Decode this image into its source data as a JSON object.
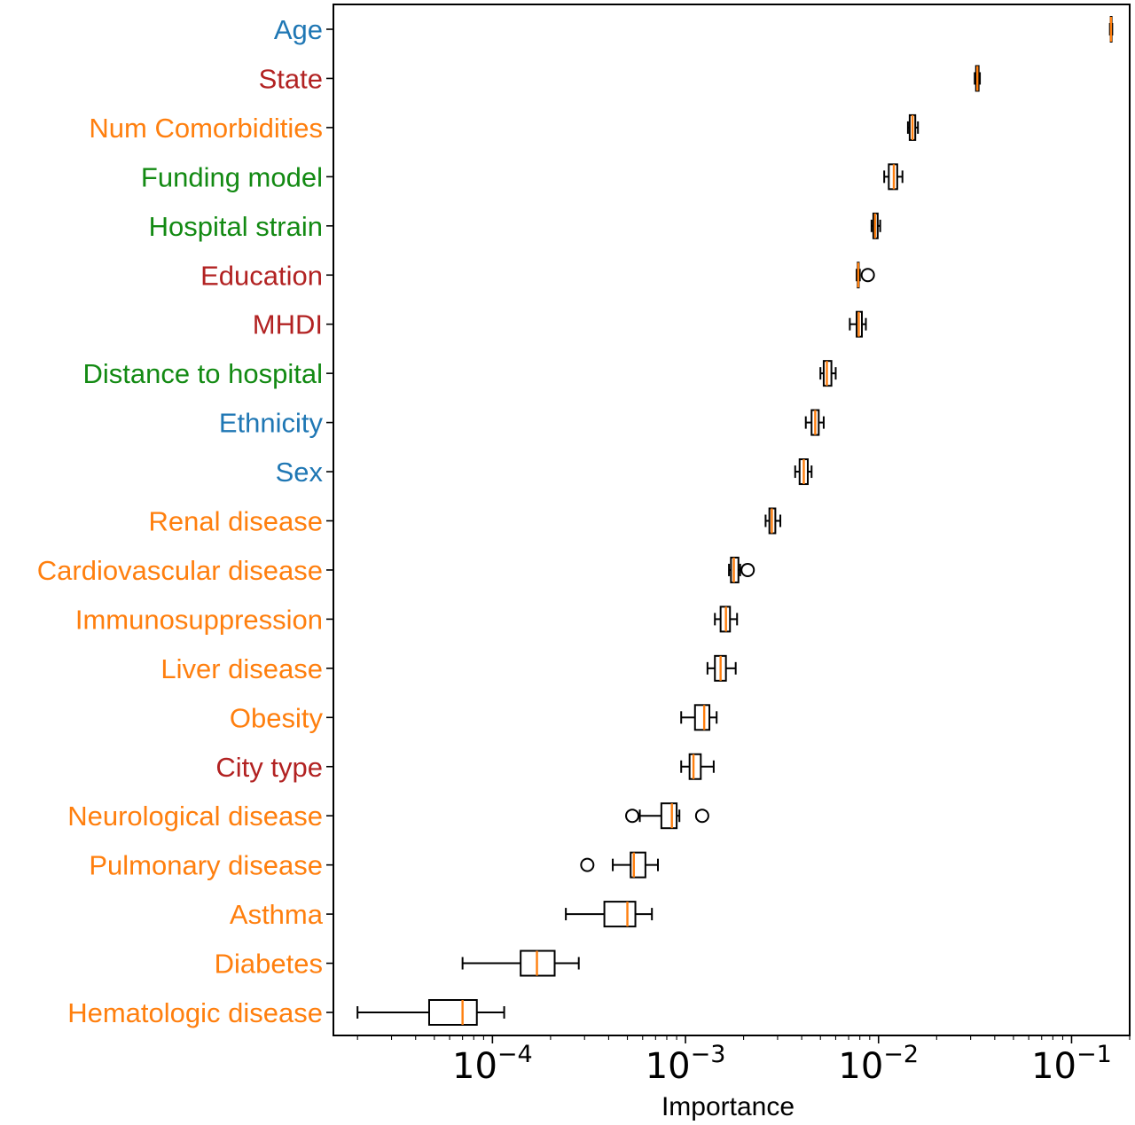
{
  "chart_data": {
    "type": "boxplot",
    "orientation": "horizontal",
    "xlabel": "Importance",
    "xscale": "log",
    "xlim": [
      1.5e-05,
      0.2
    ],
    "xticks": [
      {
        "value": 0.0001,
        "base": "10",
        "exp": "−4"
      },
      {
        "value": 0.001,
        "base": "10",
        "exp": "−3"
      },
      {
        "value": 0.01,
        "base": "10",
        "exp": "−2"
      },
      {
        "value": 0.1,
        "base": "10",
        "exp": "−1"
      }
    ],
    "grid": false,
    "colors": {
      "demographic": "#1f77b4",
      "socioeconomic": "#b22222",
      "comorbidity": "#ff7f0e",
      "healthcare": "#138a13",
      "median": "#ff7f0e",
      "box": "#000000"
    },
    "features": [
      {
        "label": "Age",
        "group": "demographic",
        "whislo": 0.158,
        "q1": 0.1595,
        "med": 0.16,
        "q3": 0.161,
        "whishi": 0.1625,
        "fliers": []
      },
      {
        "label": "State",
        "group": "socioeconomic",
        "whislo": 0.0315,
        "q1": 0.032,
        "med": 0.0325,
        "q3": 0.033,
        "whishi": 0.0335,
        "fliers": []
      },
      {
        "label": "Num Comorbidities",
        "group": "comorbidity",
        "whislo": 0.0142,
        "q1": 0.0145,
        "med": 0.015,
        "q3": 0.0155,
        "whishi": 0.016,
        "fliers": []
      },
      {
        "label": "Funding model",
        "group": "healthcare",
        "whislo": 0.0107,
        "q1": 0.0113,
        "med": 0.012,
        "q3": 0.0125,
        "whishi": 0.0133,
        "fliers": []
      },
      {
        "label": "Hospital strain",
        "group": "healthcare",
        "whislo": 0.0092,
        "q1": 0.0094,
        "med": 0.0096,
        "q3": 0.0099,
        "whishi": 0.0102,
        "fliers": []
      },
      {
        "label": "Education",
        "group": "socioeconomic",
        "whislo": 0.0077,
        "q1": 0.0078,
        "med": 0.00785,
        "q3": 0.0079,
        "whishi": 0.008,
        "fliers": [
          0.0088
        ]
      },
      {
        "label": "MHDI",
        "group": "socioeconomic",
        "whislo": 0.0071,
        "q1": 0.0077,
        "med": 0.0079,
        "q3": 0.0082,
        "whishi": 0.0086,
        "fliers": []
      },
      {
        "label": "Distance to hospital",
        "group": "healthcare",
        "whislo": 0.005,
        "q1": 0.0052,
        "med": 0.0054,
        "q3": 0.0057,
        "whishi": 0.006,
        "fliers": []
      },
      {
        "label": "Ethnicity",
        "group": "demographic",
        "whislo": 0.0042,
        "q1": 0.0045,
        "med": 0.0047,
        "q3": 0.0049,
        "whishi": 0.0052,
        "fliers": []
      },
      {
        "label": "Sex",
        "group": "demographic",
        "whislo": 0.0037,
        "q1": 0.0039,
        "med": 0.0041,
        "q3": 0.0043,
        "whishi": 0.0045,
        "fliers": []
      },
      {
        "label": "Renal disease",
        "group": "comorbidity",
        "whislo": 0.0026,
        "q1": 0.00272,
        "med": 0.0028,
        "q3": 0.00292,
        "whishi": 0.0031,
        "fliers": []
      },
      {
        "label": "Cardiovascular disease",
        "group": "comorbidity",
        "whislo": 0.00168,
        "q1": 0.00172,
        "med": 0.00178,
        "q3": 0.00188,
        "whishi": 0.00192,
        "fliers": [
          0.0021
        ]
      },
      {
        "label": "Immunosuppression",
        "group": "comorbidity",
        "whislo": 0.00142,
        "q1": 0.00152,
        "med": 0.00162,
        "q3": 0.0017,
        "whishi": 0.00185,
        "fliers": []
      },
      {
        "label": "Liver disease",
        "group": "comorbidity",
        "whislo": 0.0013,
        "q1": 0.00142,
        "med": 0.00152,
        "q3": 0.00162,
        "whishi": 0.00182,
        "fliers": []
      },
      {
        "label": "Obesity",
        "group": "comorbidity",
        "whislo": 0.00095,
        "q1": 0.00112,
        "med": 0.00125,
        "q3": 0.00133,
        "whishi": 0.00145,
        "fliers": []
      },
      {
        "label": "City type",
        "group": "socioeconomic",
        "whislo": 0.00095,
        "q1": 0.00105,
        "med": 0.0011,
        "q3": 0.0012,
        "whishi": 0.0014,
        "fliers": []
      },
      {
        "label": "Neurological disease",
        "group": "comorbidity",
        "whislo": 0.00058,
        "q1": 0.00075,
        "med": 0.00085,
        "q3": 0.0009,
        "whishi": 0.00093,
        "fliers": [
          0.00053,
          0.00122
        ]
      },
      {
        "label": "Pulmonary disease",
        "group": "comorbidity",
        "whislo": 0.00042,
        "q1": 0.00052,
        "med": 0.00054,
        "q3": 0.00062,
        "whishi": 0.00072,
        "fliers": [
          0.00031
        ]
      },
      {
        "label": "Asthma",
        "group": "comorbidity",
        "whislo": 0.00024,
        "q1": 0.00038,
        "med": 0.0005,
        "q3": 0.00055,
        "whishi": 0.00067,
        "fliers": []
      },
      {
        "label": "Diabetes",
        "group": "comorbidity",
        "whislo": 7e-05,
        "q1": 0.00014,
        "med": 0.00017,
        "q3": 0.00021,
        "whishi": 0.00028,
        "fliers": []
      },
      {
        "label": "Hematologic disease",
        "group": "comorbidity",
        "whislo": 2e-05,
        "q1": 4.7e-05,
        "med": 7e-05,
        "q3": 8.3e-05,
        "whishi": 0.000115,
        "fliers": []
      }
    ]
  }
}
